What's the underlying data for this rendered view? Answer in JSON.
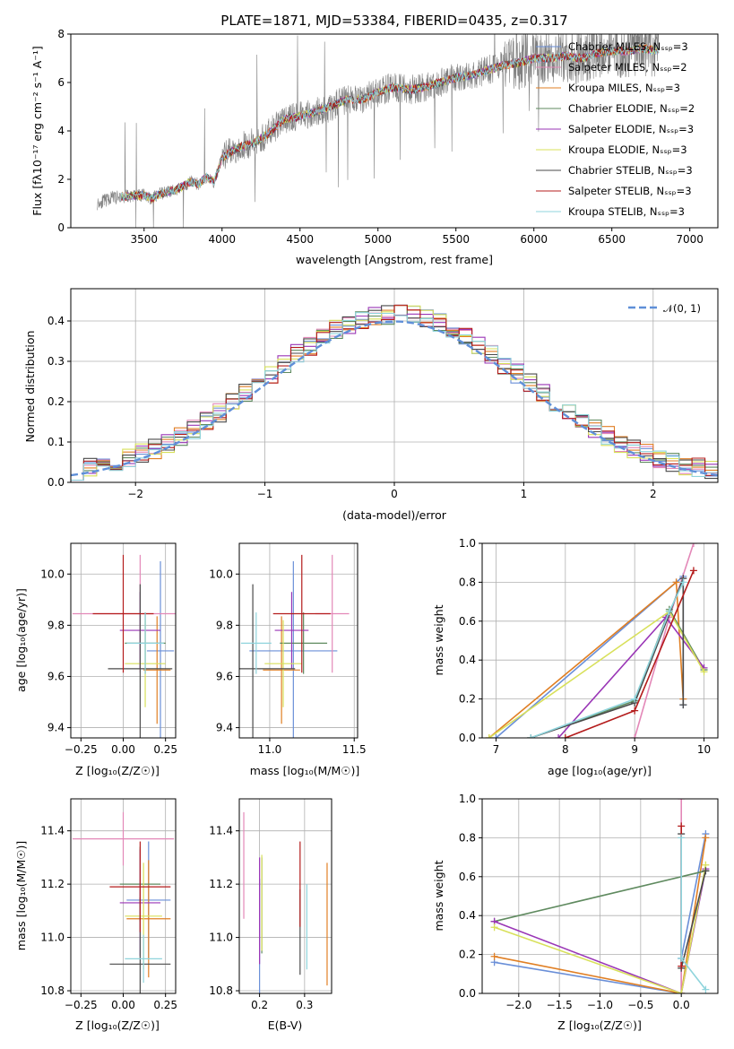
{
  "colors": {
    "Chabrier MILES": "#6a8fd8",
    "Salpeter MILES": "#e388b8",
    "Kroupa MILES": "#e07f24",
    "Chabrier ELODIE": "#5f8a5f",
    "Salpeter ELODIE": "#9a36b6",
    "Kroupa ELODIE": "#d8e05a",
    "Chabrier STELIB": "#4a4a4a",
    "Salpeter STELIB": "#b41c1c",
    "Kroupa STELIB": "#8fd4dc",
    "spectrum": "#808080",
    "normal": "#5f8fd8"
  },
  "chart_data": [
    {
      "id": "spectrum",
      "type": "line",
      "title": "PLATE=1871, MJD=53384, FIBERID=0435, z=0.317",
      "xlabel": "wavelength [Angstrom, rest frame]",
      "ylabel": "Flux [fλ10⁻¹⁷ erg cm⁻² s⁻¹ A⁻¹]",
      "xlim": [
        3030,
        7180
      ],
      "ylim": [
        0,
        8
      ],
      "xticks": [
        "3500",
        "4000",
        "4500",
        "5000",
        "5500",
        "6000",
        "6500",
        "7000"
      ],
      "yticks": [
        "0",
        "2",
        "4",
        "6",
        "8"
      ],
      "spectrum_x": [
        3200,
        3300,
        3400,
        3500,
        3550,
        3600,
        3700,
        3800,
        3850,
        3900,
        3950,
        4000,
        4100,
        4200,
        4300,
        4400,
        4500,
        4600,
        4700,
        4800,
        4900,
        5000,
        5100,
        5200,
        5300,
        5400,
        5500,
        5600,
        5700,
        5800,
        5900,
        6000,
        6100,
        6200,
        6300,
        6400,
        6500,
        6600,
        6700,
        6800
      ],
      "spectrum_y": [
        1.0,
        1.25,
        1.3,
        1.35,
        1.2,
        1.4,
        1.55,
        1.9,
        1.8,
        2.1,
        1.9,
        2.9,
        3.3,
        3.5,
        3.9,
        4.5,
        4.6,
        4.8,
        5.0,
        5.3,
        5.3,
        5.6,
        5.8,
        5.7,
        5.8,
        6.0,
        6.2,
        6.3,
        6.5,
        6.7,
        6.8,
        7.0,
        7.0,
        7.1,
        7.0,
        7.2,
        7.3,
        7.3,
        7.4,
        7.3
      ],
      "legend": [
        "Chabrier MILES, Nₛₛₚ=3",
        "Salpeter MILES, Nₛₛₚ=2",
        "Kroupa MILES, Nₛₛₚ=3",
        "Chabrier ELODIE, Nₛₛₚ=2",
        "Salpeter ELODIE, Nₛₛₚ=3",
        "Kroupa ELODIE, Nₛₛₚ=3",
        "Chabrier STELIB, Nₛₛₚ=3",
        "Salpeter STELIB, Nₛₛₚ=3",
        "Kroupa STELIB, Nₛₛₚ=3"
      ],
      "legend_position": "right"
    },
    {
      "id": "residuals",
      "type": "line",
      "xlabel": "(data-model)/error",
      "ylabel": "Normed distribution",
      "xlim": [
        -2.5,
        2.5
      ],
      "ylim": [
        0,
        0.48
      ],
      "xticks": [
        "−2",
        "−1",
        "0",
        "1",
        "2"
      ],
      "yticks": [
        "0.0",
        "0.1",
        "0.2",
        "0.3",
        "0.4"
      ],
      "legend": "𝒩(0, 1)",
      "legend_position": "top-right",
      "bin_width": 0.1,
      "bin_start": -2.5,
      "grid": true
    },
    {
      "id": "age_Z",
      "type": "scatter",
      "xlabel": "Z [log₁₀(Z/Z☉)]",
      "ylabel": "age  [log₁₀(age/yr)]",
      "xlim": [
        -0.31,
        0.31
      ],
      "ylim": [
        9.36,
        10.12
      ],
      "xticks": [
        "−0.25",
        "0.00",
        "0.25"
      ],
      "yticks": [
        "9.4",
        "9.6",
        "9.8",
        "10.0"
      ],
      "points": [
        {
          "m": "Chabrier MILES",
          "x": 0.22,
          "xe": 0.08,
          "y": 9.7,
          "ye": 0.35
        },
        {
          "m": "Salpeter MILES",
          "x": 0.1,
          "xe": 0.4,
          "y": 9.845,
          "ye": 0.23
        },
        {
          "m": "Kroupa MILES",
          "x": 0.2,
          "xe": 0.08,
          "y": 9.625,
          "ye": 0.21
        },
        {
          "m": "Chabrier ELODIE",
          "x": 0.13,
          "xe": 0.12,
          "y": 9.73,
          "ye": 0.12
        },
        {
          "m": "Salpeter ELODIE",
          "x": 0.1,
          "xe": 0.12,
          "y": 9.78,
          "ye": 0.15
        },
        {
          "m": "Kroupa ELODIE",
          "x": 0.13,
          "xe": 0.12,
          "y": 9.65,
          "ye": 0.17
        },
        {
          "m": "Chabrier STELIB",
          "x": 0.1,
          "xe": 0.19,
          "y": 9.63,
          "ye": 0.33
        },
        {
          "m": "Salpeter STELIB",
          "x": 0.0,
          "xe": 0.18,
          "y": 9.845,
          "ye": 0.23
        },
        {
          "m": "Kroupa STELIB",
          "x": 0.13,
          "xe": 0.11,
          "y": 9.73,
          "ye": 0.12
        }
      ]
    },
    {
      "id": "age_mass",
      "type": "scatter",
      "xlabel": "mass [log₁₀(M/M☉)]",
      "ylabel": "",
      "xlim": [
        10.82,
        11.52
      ],
      "ylim": [
        9.36,
        10.12
      ],
      "xticks": [
        "11.0",
        "11.5"
      ],
      "yticks": [
        "9.4",
        "9.6",
        "9.8",
        "10.0"
      ],
      "points": [
        {
          "m": "Chabrier MILES",
          "x": 11.14,
          "xe": 0.26,
          "y": 9.7,
          "ye": 0.35
        },
        {
          "m": "Salpeter MILES",
          "x": 11.37,
          "xe": 0.1,
          "y": 9.845,
          "ye": 0.23
        },
        {
          "m": "Kroupa MILES",
          "x": 11.07,
          "xe": 0.11,
          "y": 9.625,
          "ye": 0.21
        },
        {
          "m": "Chabrier ELODIE",
          "x": 11.2,
          "xe": 0.14,
          "y": 9.73,
          "ye": 0.12
        },
        {
          "m": "Salpeter ELODIE",
          "x": 11.13,
          "xe": 0.1,
          "y": 9.78,
          "ye": 0.15
        },
        {
          "m": "Kroupa ELODIE",
          "x": 11.08,
          "xe": 0.11,
          "y": 9.65,
          "ye": 0.17
        },
        {
          "m": "Chabrier STELIB",
          "x": 10.9,
          "xe": 0.25,
          "y": 9.63,
          "ye": 0.33
        },
        {
          "m": "Salpeter STELIB",
          "x": 11.19,
          "xe": 0.17,
          "y": 9.845,
          "ye": 0.23
        },
        {
          "m": "Kroupa STELIB",
          "x": 10.92,
          "xe": 0.09,
          "y": 9.73,
          "ye": 0.12
        }
      ]
    },
    {
      "id": "weight_age",
      "type": "line",
      "xlabel": "age  [log₁₀(age/yr)]",
      "ylabel": "mass weight",
      "xlim": [
        6.8,
        10.2
      ],
      "ylim": [
        0,
        1.0
      ],
      "xticks": [
        "7",
        "8",
        "9",
        "10"
      ],
      "yticks": [
        "0.0",
        "0.2",
        "0.4",
        "0.6",
        "0.8",
        "1.0"
      ],
      "series": [
        {
          "m": "Chabrier MILES",
          "x": [
            7.0,
            9.6,
            9.7,
            9.7
          ],
          "y": [
            0.0,
            0.8,
            0.83,
            0.17
          ]
        },
        {
          "m": "Salpeter MILES",
          "x": [
            9.0,
            9.5,
            9.85
          ],
          "y": [
            0.0,
            0.62,
            1.0
          ]
        },
        {
          "m": "Kroupa MILES",
          "x": [
            6.9,
            9.6,
            9.7
          ],
          "y": [
            0.0,
            0.8,
            0.2
          ]
        },
        {
          "m": "Chabrier ELODIE",
          "x": [
            7.5,
            9.0,
            9.5,
            10.0
          ],
          "y": [
            0.0,
            0.19,
            0.66,
            0.35
          ]
        },
        {
          "m": "Salpeter ELODIE",
          "x": [
            7.9,
            9.45,
            10.0
          ],
          "y": [
            0.0,
            0.62,
            0.36
          ]
        },
        {
          "m": "Kroupa ELODIE",
          "x": [
            6.9,
            9.5,
            10.0
          ],
          "y": [
            0.0,
            0.65,
            0.34
          ]
        },
        {
          "m": "Chabrier STELIB",
          "x": [
            7.5,
            9.0,
            9.7,
            9.7
          ],
          "y": [
            0.0,
            0.18,
            0.82,
            0.17
          ]
        },
        {
          "m": "Salpeter STELIB",
          "x": [
            8.0,
            9.0,
            9.85
          ],
          "y": [
            0.0,
            0.14,
            0.86
          ]
        },
        {
          "m": "Kroupa STELIB",
          "x": [
            7.5,
            9.0,
            9.5,
            9.7
          ],
          "y": [
            0.0,
            0.2,
            0.65,
            0.8
          ]
        }
      ]
    },
    {
      "id": "mass_Z",
      "type": "scatter",
      "xlabel": "Z [log₁₀(Z/Z☉)]",
      "ylabel": "mass [log₁₀(M/M☉)]",
      "xlim": [
        -0.31,
        0.31
      ],
      "ylim": [
        10.79,
        11.52
      ],
      "xticks": [
        "−0.25",
        "0.00",
        "0.25"
      ],
      "yticks": [
        "10.8",
        "11.0",
        "11.2",
        "11.4"
      ],
      "points": [
        {
          "m": "Chabrier MILES",
          "x": 0.15,
          "xe": 0.13,
          "y": 11.14,
          "ye": 0.22
        },
        {
          "m": "Salpeter MILES",
          "x": 0.0,
          "xe": 0.3,
          "y": 11.37,
          "ye": 0.1
        },
        {
          "m": "Kroupa MILES",
          "x": 0.15,
          "xe": 0.13,
          "y": 11.07,
          "ye": 0.22
        },
        {
          "m": "Chabrier ELODIE",
          "x": 0.1,
          "xe": 0.12,
          "y": 11.2,
          "ye": 0.14
        },
        {
          "m": "Salpeter ELODIE",
          "x": 0.1,
          "xe": 0.12,
          "y": 11.13,
          "ye": 0.2
        },
        {
          "m": "Kroupa ELODIE",
          "x": 0.12,
          "xe": 0.11,
          "y": 11.08,
          "ye": 0.2
        },
        {
          "m": "Chabrier STELIB",
          "x": 0.1,
          "xe": 0.18,
          "y": 10.9,
          "ye": 0.25
        },
        {
          "m": "Salpeter STELIB",
          "x": 0.1,
          "xe": 0.18,
          "y": 11.19,
          "ye": 0.17
        },
        {
          "m": "Kroupa STELIB",
          "x": 0.12,
          "xe": 0.11,
          "y": 10.92,
          "ye": 0.09
        }
      ]
    },
    {
      "id": "mass_EBV",
      "type": "scatter",
      "xlabel": "E(B-V)",
      "ylabel": "",
      "xlim": [
        0.155,
        0.36
      ],
      "ylim": [
        10.79,
        11.52
      ],
      "xticks": [
        "0.2",
        "0.3"
      ],
      "yticks": [
        "10.8",
        "11.0",
        "11.2",
        "11.4"
      ],
      "points": [
        {
          "m": "Chabrier MILES",
          "x": 0.2,
          "y": 11.0,
          "ye": 0.22
        },
        {
          "m": "Salpeter MILES",
          "x": 0.165,
          "y": 11.27,
          "ye": 0.2
        },
        {
          "m": "Kroupa MILES",
          "x": 0.35,
          "y": 11.05,
          "ye": 0.23
        },
        {
          "m": "Chabrier ELODIE",
          "x": 0.205,
          "y": 11.12,
          "ye": 0.18
        },
        {
          "m": "Salpeter ELODIE",
          "x": 0.2,
          "y": 11.1,
          "ye": 0.2
        },
        {
          "m": "Kroupa ELODIE",
          "x": 0.205,
          "y": 11.13,
          "ye": 0.18
        },
        {
          "m": "Chabrier STELIB",
          "x": 0.29,
          "y": 11.02,
          "ye": 0.16
        },
        {
          "m": "Salpeter STELIB",
          "x": 0.29,
          "y": 11.2,
          "ye": 0.16
        },
        {
          "m": "Kroupa STELIB",
          "x": 0.305,
          "y": 11.04,
          "ye": 0.16
        }
      ]
    },
    {
      "id": "weight_Z",
      "type": "line",
      "xlabel": "Z [log₁₀(Z/Z☉)]",
      "ylabel": "mass weight",
      "xlim": [
        -2.45,
        0.45
      ],
      "ylim": [
        0,
        1.0
      ],
      "xticks": [
        "−2.0",
        "−1.5",
        "−1.0",
        "−0.5",
        "0.0"
      ],
      "yticks": [
        "0.0",
        "0.2",
        "0.4",
        "0.6",
        "0.8",
        "1.0"
      ],
      "series": [
        {
          "m": "Chabrier MILES",
          "x": [
            -2.3,
            0.0,
            0.0,
            0.3
          ],
          "y": [
            0.16,
            0.0,
            0.18,
            0.82
          ]
        },
        {
          "m": "Salpeter MILES",
          "x": [
            0.0,
            0.0
          ],
          "y": [
            1.0,
            0.0
          ]
        },
        {
          "m": "Kroupa MILES",
          "x": [
            -2.3,
            0.0,
            0.3
          ],
          "y": [
            0.19,
            0.0,
            0.8
          ]
        },
        {
          "m": "Chabrier ELODIE",
          "x": [
            -2.3,
            0.3
          ],
          "y": [
            0.37,
            0.63
          ]
        },
        {
          "m": "Salpeter ELODIE",
          "x": [
            -2.3,
            0.0,
            0.3
          ],
          "y": [
            0.37,
            0.0,
            0.64
          ]
        },
        {
          "m": "Kroupa ELODIE",
          "x": [
            -2.3,
            0.0,
            0.3
          ],
          "y": [
            0.34,
            0.0,
            0.66
          ]
        },
        {
          "m": "Chabrier STELIB",
          "x": [
            0.0,
            0.0,
            0.3
          ],
          "y": [
            0.82,
            0.13,
            0.63
          ]
        },
        {
          "m": "Salpeter STELIB",
          "x": [
            0.0,
            0.0
          ],
          "y": [
            0.86,
            0.14
          ]
        },
        {
          "m": "Kroupa STELIB",
          "x": [
            0.0,
            0.0,
            0.3
          ],
          "y": [
            0.8,
            0.18,
            0.02
          ]
        }
      ]
    }
  ]
}
